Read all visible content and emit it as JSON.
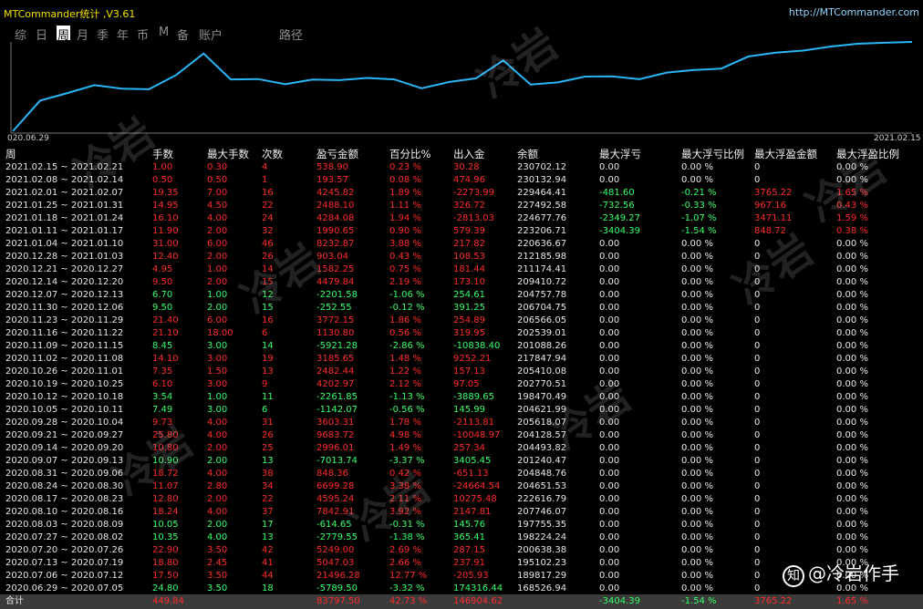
{
  "app": {
    "title": "MTCommander统计 ,V3.61",
    "url": "http://MTCommander.com"
  },
  "tabs": [
    {
      "label": "综"
    },
    {
      "label": "日"
    },
    {
      "label": "周",
      "active": true
    },
    {
      "label": "月"
    },
    {
      "label": "季"
    },
    {
      "label": "年"
    },
    {
      "label": "币"
    },
    {
      "label": "M"
    },
    {
      "label": "备"
    },
    {
      "label": "账户"
    },
    {
      "label": "路径"
    }
  ],
  "equity_chart": {
    "x_start_label": "020.06.29",
    "x_end_label": "2021.02.15",
    "line_color": "#29b6f6",
    "note": "balance curve per week",
    "values": [
      168526.94,
      189817.29,
      195102.23,
      200638.38,
      198224.24,
      197755.35,
      207746.07,
      222616.79,
      204651.53,
      204848.76,
      201240.47,
      204493.82,
      204128.57,
      205618.07,
      204621.99,
      198470.49,
      202770.51,
      205410.08,
      217847.94,
      201088.26,
      202539.01,
      206566.05,
      206704.75,
      204757.78,
      209410.72,
      211174.41,
      212185.98,
      220636.67,
      223206.71,
      224677.76,
      227492.58,
      229464.41,
      230132.94,
      230702.12
    ]
  },
  "table": {
    "headers": [
      "周",
      "手数",
      "最大手数",
      "次数",
      "盈亏金额",
      "百分比%",
      "出入金",
      "余额",
      "最大浮亏",
      "最大浮亏比例",
      "最大浮盈金额",
      "最大浮盈比例"
    ],
    "rows": [
      [
        "2021.02.15 ~ 2021.02.21",
        "1.00",
        "0.30",
        "4",
        "538.90",
        "0.23 %",
        "30.28",
        "230702.12",
        "0.00",
        "0.00 %",
        "0",
        "0.00 %"
      ],
      [
        "2021.02.08 ~ 2021.02.14",
        "0.50",
        "0.50",
        "1",
        "193.57",
        "0.08 %",
        "474.96",
        "230132.94",
        "0.00",
        "0.00 %",
        "0",
        "0.00 %"
      ],
      [
        "2021.02.01 ~ 2021.02.07",
        "19.35",
        "7.00",
        "16",
        "4245.82",
        "1.89 %",
        "-2273.99",
        "229464.41",
        "-481.60",
        "-0.21 %",
        "3765.22",
        "1.65 %"
      ],
      [
        "2021.01.25 ~ 2021.01.31",
        "14.95",
        "4.50",
        "22",
        "2488.10",
        "1.11 %",
        "326.72",
        "227492.58",
        "-732.56",
        "-0.33 %",
        "967.16",
        "0.43 %"
      ],
      [
        "2021.01.18 ~ 2021.01.24",
        "16.10",
        "4.00",
        "24",
        "4284.08",
        "1.94 %",
        "-2813.03",
        "224677.76",
        "-2349.27",
        "-1.07 %",
        "3471.11",
        "1.59 %"
      ],
      [
        "2021.01.11 ~ 2021.01.17",
        "11.90",
        "2.00",
        "32",
        "1990.65",
        "0.90 %",
        "579.39",
        "223206.71",
        "-3404.39",
        "-1.54 %",
        "848.72",
        "0.38 %"
      ],
      [
        "2021.01.04 ~ 2021.01.10",
        "31.00",
        "6.00",
        "46",
        "8232.87",
        "3.88 %",
        "217.82",
        "220636.67",
        "0.00",
        "0.00 %",
        "0",
        "0.00 %"
      ],
      [
        "2020.12.28 ~ 2021.01.03",
        "12.40",
        "2.00",
        "26",
        "903.04",
        "0.43 %",
        "108.53",
        "212185.98",
        "0.00",
        "0.00 %",
        "0",
        "0.00 %"
      ],
      [
        "2020.12.21 ~ 2020.12.27",
        "4.95",
        "1.00",
        "14",
        "1582.25",
        "0.75 %",
        "181.44",
        "211174.41",
        "0.00",
        "0.00 %",
        "0",
        "0.00 %"
      ],
      [
        "2020.12.14 ~ 2020.12.20",
        "9.50",
        "2.00",
        "15",
        "4479.84",
        "2.19 %",
        "173.10",
        "209410.72",
        "0.00",
        "0.00 %",
        "0",
        "0.00 %"
      ],
      [
        "2020.12.07 ~ 2020.12.13",
        "6.70",
        "1.00",
        "12",
        "-2201.58",
        "-1.06 %",
        "254.61",
        "204757.78",
        "0.00",
        "0.00 %",
        "0",
        "0.00 %"
      ],
      [
        "2020.11.30 ~ 2020.12.06",
        "9.50",
        "2.00",
        "15",
        "-252.55",
        "-0.12 %",
        "391.25",
        "206704.75",
        "0.00",
        "0.00 %",
        "0",
        "0.00 %"
      ],
      [
        "2020.11.23 ~ 2020.11.29",
        "21.40",
        "6.00",
        "16",
        "3772.15",
        "1.86 %",
        "254.89",
        "206566.05",
        "0.00",
        "0.00 %",
        "0",
        "0.00 %"
      ],
      [
        "2020.11.16 ~ 2020.11.22",
        "21.10",
        "18.00",
        "6",
        "1130.80",
        "0.56 %",
        "319.95",
        "202539.01",
        "0.00",
        "0.00 %",
        "0",
        "0.00 %"
      ],
      [
        "2020.11.09 ~ 2020.11.15",
        "8.45",
        "3.00",
        "14",
        "-5921.28",
        "-2.86 %",
        "-10838.40",
        "201088.26",
        "0.00",
        "0.00 %",
        "0",
        "0.00 %"
      ],
      [
        "2020.11.02 ~ 2020.11.08",
        "14.10",
        "3.00",
        "19",
        "3185.65",
        "1.48 %",
        "9252.21",
        "217847.94",
        "0.00",
        "0.00 %",
        "0",
        "0.00 %"
      ],
      [
        "2020.10.26 ~ 2020.11.01",
        "7.35",
        "1.50",
        "13",
        "2482.44",
        "1.22 %",
        "157.13",
        "205410.08",
        "0.00",
        "0.00 %",
        "0",
        "0.00 %"
      ],
      [
        "2020.10.19 ~ 2020.10.25",
        "6.10",
        "3.00",
        "9",
        "4202.97",
        "2.12 %",
        "97.05",
        "202770.51",
        "0.00",
        "0.00 %",
        "0",
        "0.00 %"
      ],
      [
        "2020.10.12 ~ 2020.10.18",
        "3.54",
        "1.00",
        "11",
        "-2261.85",
        "-1.13 %",
        "-3889.65",
        "198470.49",
        "0.00",
        "0.00 %",
        "0",
        "0.00 %"
      ],
      [
        "2020.10.05 ~ 2020.10.11",
        "7.49",
        "3.00",
        "6",
        "-1142.07",
        "-0.56 %",
        "145.99",
        "204621.99",
        "0.00",
        "0.00 %",
        "0",
        "0.00 %"
      ],
      [
        "2020.09.28 ~ 2020.10.04",
        "9.73",
        "4.00",
        "31",
        "3603.31",
        "1.78 %",
        "-2113.81",
        "205618.07",
        "0.00",
        "0.00 %",
        "0",
        "0.00 %"
      ],
      [
        "2020.09.21 ~ 2020.09.27",
        "25.80",
        "4.00",
        "26",
        "9683.72",
        "4.98 %",
        "-10048.97",
        "204128.57",
        "0.00",
        "0.00 %",
        "0",
        "0.00 %"
      ],
      [
        "2020.09.14 ~ 2020.09.20",
        "10.80",
        "2.00",
        "25",
        "2996.01",
        "1.49 %",
        "257.34",
        "204493.82",
        "0.00",
        "0.00 %",
        "0",
        "0.00 %"
      ],
      [
        "2020.09.07 ~ 2020.09.13",
        "10.90",
        "2.00",
        "13",
        "-7013.74",
        "-3.37 %",
        "3405.45",
        "201240.47",
        "0.00",
        "0.00 %",
        "0",
        "0.00 %"
      ],
      [
        "2020.08.31 ~ 2020.09.06",
        "18.72",
        "4.00",
        "38",
        "848.36",
        "0.42 %",
        "-651.13",
        "204848.76",
        "0.00",
        "0.00 %",
        "0",
        "0.00 %"
      ],
      [
        "2020.08.24 ~ 2020.08.30",
        "11.07",
        "2.80",
        "34",
        "6699.28",
        "3.38 %",
        "-24664.54",
        "204651.53",
        "0.00",
        "0.00 %",
        "0",
        "0.00 %"
      ],
      [
        "2020.08.17 ~ 2020.08.23",
        "12.80",
        "2.00",
        "22",
        "4595.24",
        "2.11 %",
        "10275.48",
        "222616.79",
        "0.00",
        "0.00 %",
        "0",
        "0.00 %"
      ],
      [
        "2020.08.10 ~ 2020.08.16",
        "18.24",
        "4.00",
        "37",
        "7842.91",
        "3.92 %",
        "2147.81",
        "207746.07",
        "0.00",
        "0.00 %",
        "0",
        "0.00 %"
      ],
      [
        "2020.08.03 ~ 2020.08.09",
        "10.05",
        "2.00",
        "17",
        "-614.65",
        "-0.31 %",
        "145.76",
        "197755.35",
        "0.00",
        "0.00 %",
        "0",
        "0.00 %"
      ],
      [
        "2020.07.27 ~ 2020.08.02",
        "10.35",
        "4.00",
        "13",
        "-2779.55",
        "-1.38 %",
        "365.41",
        "198224.24",
        "0.00",
        "0.00 %",
        "0",
        "0.00 %"
      ],
      [
        "2020.07.20 ~ 2020.07.26",
        "22.90",
        "3.50",
        "42",
        "5249.00",
        "2.69 %",
        "287.15",
        "200638.38",
        "0.00",
        "0.00 %",
        "0",
        "0.00 %"
      ],
      [
        "2020.07.13 ~ 2020.07.19",
        "18.80",
        "2.45",
        "41",
        "5047.03",
        "2.66 %",
        "237.91",
        "195102.23",
        "0.00",
        "0.00 %",
        "0",
        "0.00 %"
      ],
      [
        "2020.07.06 ~ 2020.07.12",
        "17.50",
        "3.50",
        "44",
        "21496.28",
        "12.77 %",
        "-205.93",
        "189817.29",
        "0.00",
        "0.00 %",
        "0",
        "0.00 %"
      ],
      [
        "2020.06.29 ~ 2020.07.05",
        "24.80",
        "3.50",
        "18",
        "-5789.50",
        "-3.32 %",
        "174316.44",
        "168526.94",
        "0.00",
        "0.00 %",
        "0",
        "0.00 %"
      ]
    ],
    "total": [
      "合计",
      "449.84",
      "",
      "",
      "83797.50",
      "42.73 %",
      "146904.62",
      "",
      "-3404.39",
      "-1.54 %",
      "3765.22",
      "1.65 %"
    ]
  },
  "watermark": {
    "text": "冷岩"
  },
  "brand": {
    "icon": "知",
    "label": "@冷岩作手"
  }
}
